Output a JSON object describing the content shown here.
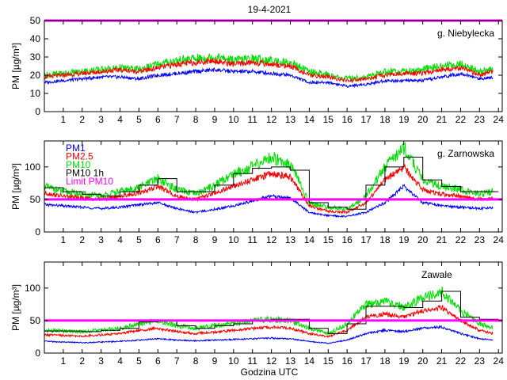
{
  "title": "19-4-2021",
  "xlabel": "Godzina UTC",
  "colors": {
    "pm1": "#0000ff",
    "pm25": "#ff0000",
    "pm10": "#00e000",
    "pm10_1h": "#000000",
    "limit": "#ff00ff"
  },
  "legend": [
    "PM1",
    "PM2.5",
    "PM10",
    "PM10 1h",
    "Limit PM10"
  ],
  "chart_data": [
    {
      "type": "line",
      "station": "g. Niebylecka",
      "ylabel": "PM [µg/m³]",
      "xlim": [
        0,
        24.2
      ],
      "ylim": [
        0,
        50
      ],
      "yticks": [
        0,
        10,
        20,
        30,
        40,
        50
      ],
      "xticks": [
        1,
        2,
        3,
        4,
        5,
        6,
        7,
        8,
        9,
        10,
        11,
        12,
        13,
        14,
        15,
        16,
        17,
        18,
        19,
        20,
        21,
        22,
        23,
        24
      ],
      "limit_pm10": 50,
      "series": [
        {
          "name": "PM1",
          "x": [
            0,
            1,
            2,
            3,
            4,
            5,
            6,
            7,
            8,
            9,
            10,
            11,
            12,
            13,
            14,
            15,
            16,
            17,
            18,
            19,
            20,
            21,
            22,
            23,
            23.7
          ],
          "y": [
            16,
            17,
            18,
            19,
            19,
            18,
            20,
            21,
            22,
            23,
            22,
            22,
            21,
            20,
            16,
            16,
            14,
            15,
            17,
            17,
            17,
            19,
            21,
            18,
            19
          ]
        },
        {
          "name": "PM2.5",
          "x": [
            0,
            1,
            2,
            3,
            4,
            5,
            6,
            7,
            8,
            9,
            10,
            11,
            12,
            13,
            14,
            15,
            16,
            17,
            18,
            19,
            20,
            21,
            22,
            23,
            23.7
          ],
          "y": [
            19,
            20,
            21,
            22,
            23,
            22,
            24,
            26,
            27,
            28,
            26,
            27,
            26,
            25,
            20,
            19,
            17,
            18,
            20,
            21,
            21,
            23,
            24,
            20,
            22
          ]
        },
        {
          "name": "PM10",
          "x": [
            0,
            1,
            2,
            3,
            4,
            5,
            6,
            7,
            8,
            9,
            10,
            11,
            12,
            13,
            14,
            15,
            16,
            17,
            18,
            19,
            20,
            21,
            22,
            23,
            23.7
          ],
          "y": [
            20,
            21,
            22,
            23,
            24,
            23,
            26,
            28,
            29,
            30,
            28,
            29,
            28,
            27,
            22,
            20,
            18,
            19,
            22,
            22,
            23,
            25,
            26,
            22,
            23
          ]
        }
      ]
    },
    {
      "type": "line",
      "station": "g. Zarnowska",
      "ylabel": "PM [µg/m³]",
      "xlim": [
        0,
        24.2
      ],
      "ylim": [
        0,
        140
      ],
      "yticks": [
        0,
        50,
        100
      ],
      "xticks": [
        1,
        2,
        3,
        4,
        5,
        6,
        7,
        8,
        9,
        10,
        11,
        12,
        13,
        14,
        15,
        16,
        17,
        18,
        19,
        20,
        21,
        22,
        23,
        24
      ],
      "limit_pm10": 50,
      "series": [
        {
          "name": "PM1",
          "x": [
            0,
            1,
            2,
            3,
            4,
            5,
            6,
            7,
            8,
            9,
            10,
            11,
            12,
            13,
            14,
            15,
            16,
            17,
            18,
            19,
            20,
            21,
            22,
            23,
            23.7
          ],
          "y": [
            42,
            40,
            38,
            36,
            38,
            42,
            45,
            36,
            30,
            35,
            40,
            48,
            55,
            52,
            30,
            25,
            24,
            30,
            45,
            70,
            45,
            40,
            38,
            36,
            37
          ]
        },
        {
          "name": "PM2.5",
          "x": [
            0,
            1,
            2,
            3,
            4,
            5,
            6,
            7,
            8,
            9,
            10,
            11,
            12,
            13,
            14,
            15,
            16,
            17,
            18,
            19,
            20,
            21,
            22,
            23,
            23.7
          ],
          "y": [
            60,
            55,
            52,
            50,
            55,
            60,
            70,
            55,
            50,
            60,
            70,
            80,
            90,
            85,
            40,
            32,
            30,
            45,
            80,
            100,
            65,
            58,
            55,
            50,
            52
          ]
        },
        {
          "name": "PM10",
          "x": [
            0,
            1,
            2,
            3,
            4,
            5,
            6,
            7,
            8,
            9,
            10,
            11,
            12,
            13,
            14,
            15,
            16,
            17,
            18,
            19,
            20,
            21,
            22,
            23,
            23.7
          ],
          "y": [
            70,
            62,
            58,
            55,
            62,
            68,
            82,
            65,
            58,
            72,
            90,
            100,
            115,
            105,
            45,
            38,
            35,
            55,
            100,
            130,
            80,
            70,
            65,
            58,
            62
          ]
        },
        {
          "name": "PM10 1h",
          "step": true,
          "x": [
            0,
            1,
            2,
            3,
            4,
            5,
            6,
            7,
            8,
            9,
            10,
            11,
            12,
            13,
            14,
            15,
            16,
            17,
            18,
            19,
            20,
            21,
            22,
            23,
            24
          ],
          "y": [
            68,
            62,
            58,
            55,
            62,
            72,
            82,
            62,
            62,
            72,
            90,
            98,
            100,
            95,
            45,
            38,
            35,
            72,
            100,
            115,
            80,
            70,
            62,
            62,
            62
          ]
        }
      ]
    },
    {
      "type": "line",
      "station": "Zawale",
      "ylabel": "PM [µg/m³]",
      "xlim": [
        0,
        24.2
      ],
      "ylim": [
        0,
        140
      ],
      "yticks": [
        0,
        50,
        100
      ],
      "xticks": [
        1,
        2,
        3,
        4,
        5,
        6,
        7,
        8,
        9,
        10,
        11,
        12,
        13,
        14,
        15,
        16,
        17,
        18,
        19,
        20,
        21,
        22,
        23,
        24
      ],
      "limit_pm10": 50,
      "series": [
        {
          "name": "PM1",
          "x": [
            0,
            1,
            2,
            3,
            4,
            5,
            6,
            7,
            8,
            9,
            10,
            11,
            12,
            13,
            14,
            15,
            16,
            17,
            18,
            19,
            20,
            21,
            22,
            23,
            23.7
          ],
          "y": [
            18,
            17,
            16,
            17,
            18,
            20,
            22,
            20,
            19,
            20,
            21,
            22,
            23,
            22,
            18,
            15,
            20,
            30,
            35,
            33,
            38,
            40,
            30,
            22,
            20
          ]
        },
        {
          "name": "PM2.5",
          "x": [
            0,
            1,
            2,
            3,
            4,
            5,
            6,
            7,
            8,
            9,
            10,
            11,
            12,
            13,
            14,
            15,
            16,
            17,
            18,
            19,
            20,
            21,
            22,
            23,
            23.7
          ],
          "y": [
            28,
            27,
            26,
            28,
            30,
            35,
            38,
            33,
            30,
            32,
            35,
            38,
            40,
            38,
            30,
            25,
            35,
            55,
            60,
            55,
            65,
            70,
            50,
            35,
            30
          ]
        },
        {
          "name": "PM10",
          "x": [
            0,
            1,
            2,
            3,
            4,
            5,
            6,
            7,
            8,
            9,
            10,
            11,
            12,
            13,
            14,
            15,
            16,
            17,
            18,
            19,
            20,
            21,
            22,
            23,
            23.7
          ],
          "y": [
            35,
            34,
            33,
            35,
            38,
            45,
            50,
            42,
            38,
            42,
            45,
            50,
            52,
            50,
            38,
            30,
            45,
            75,
            80,
            70,
            85,
            95,
            65,
            45,
            40
          ]
        },
        {
          "name": "PM10 1h",
          "step": true,
          "x": [
            0,
            1,
            2,
            3,
            4,
            5,
            6,
            7,
            8,
            9,
            10,
            11,
            12,
            13,
            14,
            15,
            16,
            17,
            18,
            19,
            20,
            21,
            22,
            23,
            24
          ],
          "y": [
            34,
            34,
            33,
            35,
            38,
            48,
            50,
            42,
            38,
            42,
            45,
            50,
            52,
            52,
            38,
            30,
            45,
            72,
            72,
            70,
            80,
            95,
            55,
            52,
            52
          ]
        }
      ]
    }
  ]
}
